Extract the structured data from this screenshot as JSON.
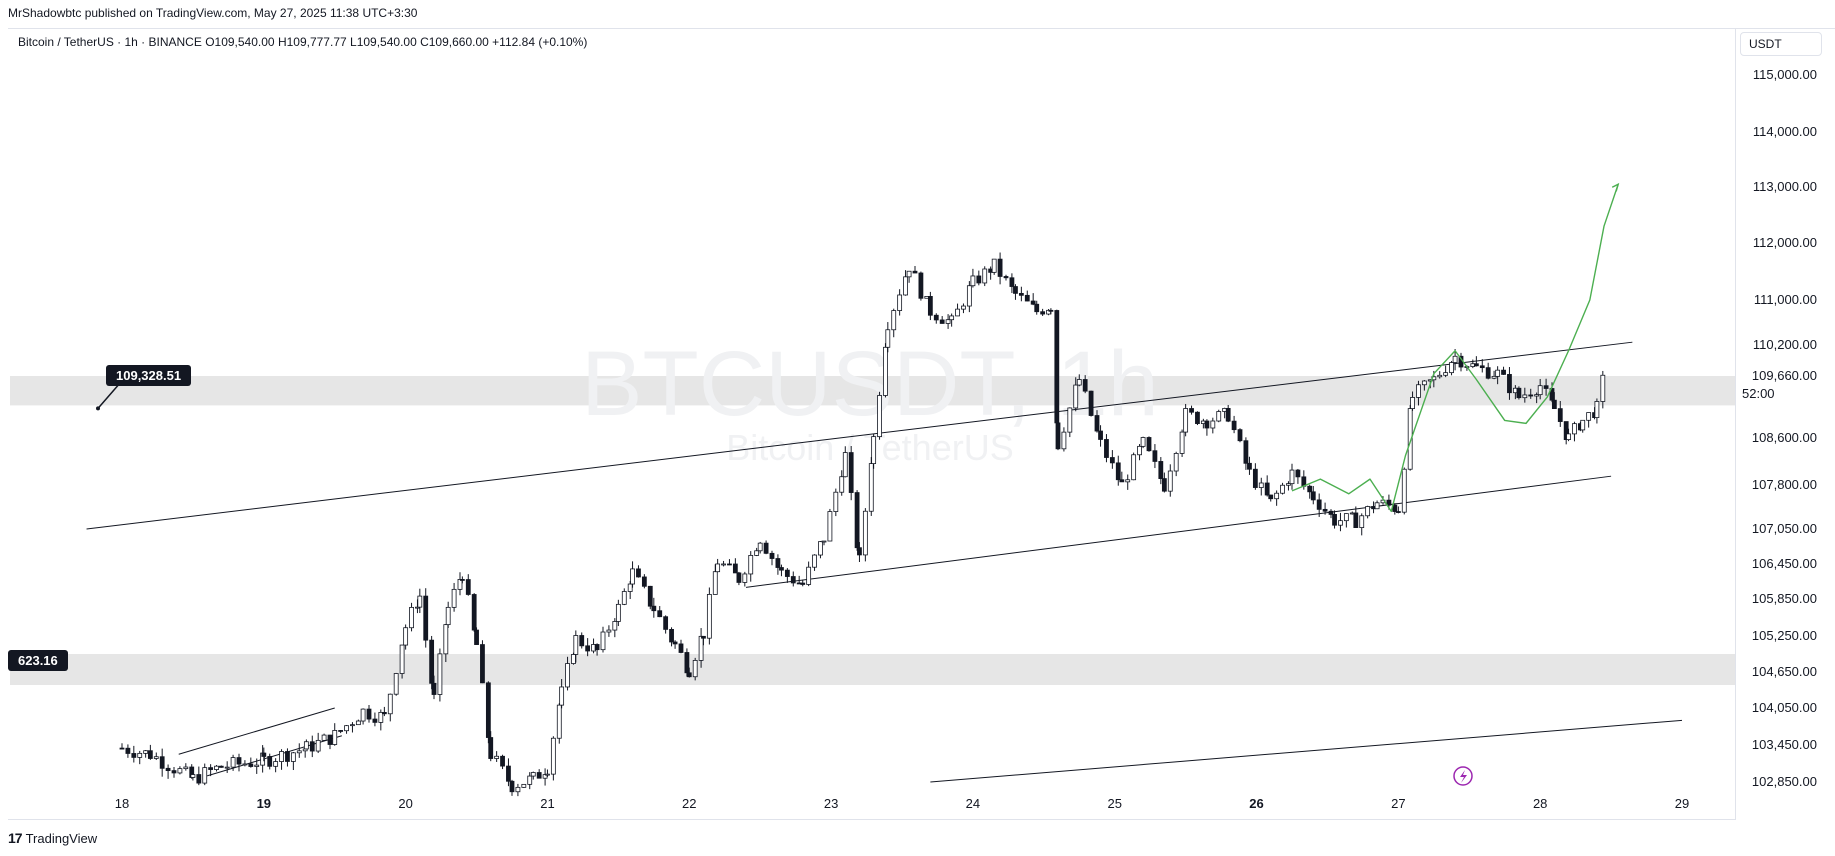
{
  "publish_line": "MrShadowbtc published on TradingView.com, May 27, 2025 11:38 UTC+3:30",
  "header": {
    "symbol": "Bitcoin / TetherUS · 1h · BINANCE",
    "open": "O109,540.00",
    "high": "H109,777.77",
    "low": "L109,540.00",
    "close": "C109,660.00",
    "change": "+112.84 (+0.10%)"
  },
  "currency_button": "USDT",
  "watermark": {
    "ticker": "BTCUSDT, 1h",
    "name": "Bitcoin / TetherUS"
  },
  "callouts": {
    "upper": "109,328.51",
    "lower": "623.16"
  },
  "countdown": "52:00",
  "footer": {
    "logo_text": "TradingView"
  },
  "colors": {
    "up": "#ffffff",
    "down": "#131722",
    "projection": "#4caf50",
    "zone": "#e6e6e6",
    "accent": "#9c27b0"
  },
  "chart_data": {
    "type": "candlestick",
    "price_axis_ticks": [
      "115,000.00",
      "114,000.00",
      "113,000.00",
      "112,000.00",
      "111,000.00",
      "110,200.00",
      "109,660.00",
      "108,600.00",
      "107,800.00",
      "107,050.00",
      "106,450.00",
      "105,850.00",
      "105,250.00",
      "104,650.00",
      "104,050.00",
      "103,450.00",
      "102,850.00"
    ],
    "time_axis_ticks": [
      {
        "label": "18",
        "bold": false
      },
      {
        "label": "19",
        "bold": true
      },
      {
        "label": "20",
        "bold": false
      },
      {
        "label": "21",
        "bold": false
      },
      {
        "label": "22",
        "bold": false
      },
      {
        "label": "23",
        "bold": false
      },
      {
        "label": "24",
        "bold": false
      },
      {
        "label": "25",
        "bold": false
      },
      {
        "label": "26",
        "bold": true
      },
      {
        "label": "27",
        "bold": false
      },
      {
        "label": "28",
        "bold": false
      },
      {
        "label": "29",
        "bold": false
      }
    ],
    "close_path": [
      [
        17.0,
        103400
      ],
      [
        17.2,
        103300
      ],
      [
        17.5,
        102900
      ],
      [
        17.7,
        103100
      ],
      [
        18.0,
        103200
      ],
      [
        18.3,
        103400
      ],
      [
        18.5,
        103600
      ],
      [
        18.7,
        104000
      ],
      [
        18.85,
        103900
      ],
      [
        19.0,
        105400
      ],
      [
        19.1,
        105900
      ],
      [
        19.2,
        104200
      ],
      [
        19.3,
        105700
      ],
      [
        19.4,
        106300
      ],
      [
        19.5,
        105100
      ],
      [
        19.6,
        103300
      ],
      [
        19.75,
        102800
      ],
      [
        19.9,
        102900
      ],
      [
        20.0,
        103100
      ],
      [
        20.1,
        104300
      ],
      [
        20.2,
        105200
      ],
      [
        20.35,
        105000
      ],
      [
        20.5,
        105700
      ],
      [
        20.6,
        106300
      ],
      [
        20.75,
        105700
      ],
      [
        20.9,
        105100
      ],
      [
        21.0,
        104700
      ],
      [
        21.1,
        105300
      ],
      [
        21.2,
        106500
      ],
      [
        21.35,
        106200
      ],
      [
        21.5,
        106900
      ],
      [
        21.65,
        106300
      ],
      [
        21.8,
        106100
      ],
      [
        21.95,
        106900
      ],
      [
        22.1,
        108300
      ],
      [
        22.2,
        106500
      ],
      [
        22.3,
        108600
      ],
      [
        22.4,
        110600
      ],
      [
        22.55,
        111600
      ],
      [
        22.7,
        110800
      ],
      [
        22.85,
        110600
      ],
      [
        23.0,
        111300
      ],
      [
        23.15,
        111600
      ],
      [
        23.3,
        111100
      ],
      [
        23.45,
        110800
      ],
      [
        23.55,
        110900
      ],
      [
        23.6,
        108500
      ],
      [
        23.75,
        109600
      ],
      [
        23.9,
        108500
      ],
      [
        24.05,
        107800
      ],
      [
        24.2,
        108500
      ],
      [
        24.35,
        107800
      ],
      [
        24.5,
        109000
      ],
      [
        24.65,
        108900
      ],
      [
        24.8,
        109000
      ],
      [
        24.95,
        108000
      ],
      [
        25.1,
        107500
      ],
      [
        25.25,
        108000
      ],
      [
        25.4,
        107600
      ],
      [
        25.55,
        107200
      ],
      [
        25.7,
        107200
      ],
      [
        25.85,
        107500
      ],
      [
        26.0,
        107400
      ],
      [
        26.1,
        109300
      ],
      [
        26.25,
        109600
      ],
      [
        26.4,
        110000
      ],
      [
        26.55,
        109800
      ],
      [
        26.7,
        109700
      ],
      [
        26.85,
        109300
      ],
      [
        27.0,
        109500
      ],
      [
        27.1,
        109100
      ],
      [
        27.2,
        108600
      ],
      [
        27.3,
        108900
      ],
      [
        27.4,
        109100
      ],
      [
        27.45,
        109660
      ]
    ],
    "trendlines": [
      {
        "from": [
          16.75,
          107050
        ],
        "to": [
          27.65,
          110250
        ]
      },
      {
        "from": [
          21.4,
          106050
        ],
        "to": [
          27.5,
          107950
        ]
      },
      {
        "from": [
          22.7,
          102850
        ],
        "to": [
          28.0,
          103850
        ]
      },
      {
        "from": [
          17.4,
          103300
        ],
        "to": [
          18.5,
          104050
        ]
      },
      {
        "from": [
          17.6,
          102950
        ],
        "to": [
          18.55,
          103600
        ]
      }
    ],
    "zones": [
      {
        "from": 109328.51,
        "to": 109660,
        "label": "109,328.51"
      },
      {
        "from": 104600,
        "to": 104950,
        "label": "623.16"
      }
    ],
    "projection_path": [
      [
        25.25,
        107700
      ],
      [
        25.45,
        107900
      ],
      [
        25.65,
        107650
      ],
      [
        25.8,
        107900
      ],
      [
        25.95,
        107350
      ],
      [
        26.05,
        108300
      ],
      [
        26.25,
        109700
      ],
      [
        26.4,
        110100
      ],
      [
        26.55,
        109600
      ],
      [
        26.75,
        108900
      ],
      [
        26.9,
        108850
      ],
      [
        27.05,
        109300
      ],
      [
        27.2,
        110100
      ],
      [
        27.35,
        111000
      ],
      [
        27.45,
        112300
      ],
      [
        27.55,
        113050
      ]
    ],
    "x_range": [
      16.75,
      29.3
    ],
    "y_range": [
      102600,
      115500
    ]
  }
}
